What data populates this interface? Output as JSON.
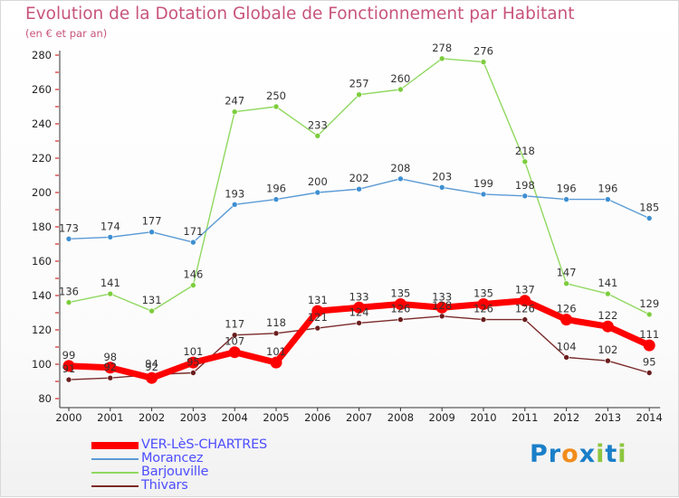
{
  "header": {
    "title": "Evolution de la Dotation Globale de Fonctionnement par Habitant",
    "subtitle": "(en € et par an)"
  },
  "logo": {
    "text": "Proxiti",
    "colors": [
      "#1a7fc8",
      "#1a7fc8",
      "#f28c1c",
      "#1a7fc8",
      "#8dc63f",
      "#1a7fc8",
      "#8dc63f"
    ]
  },
  "colors": {
    "title": "#c8547c",
    "legend_text": "#4d4dff",
    "axis": "#333333",
    "grid_tick": "#cc0000"
  },
  "chart_data": {
    "type": "line",
    "x": [
      "2000",
      "2001",
      "2002",
      "2003",
      "2004",
      "2005",
      "2006",
      "2007",
      "2008",
      "2009",
      "2010",
      "2011",
      "2012",
      "2013",
      "2014"
    ],
    "ylim": [
      80,
      280
    ],
    "yticks": [
      80,
      100,
      120,
      140,
      160,
      180,
      200,
      220,
      240,
      260,
      280
    ],
    "grid": false,
    "legend_position": "bottom-left",
    "series": [
      {
        "name": "VER-LèS-CHARTRES",
        "color": "#ff0000",
        "emphasis": true,
        "values": [
          99,
          98,
          92,
          101,
          107,
          101,
          131,
          133,
          135,
          133,
          135,
          137,
          126,
          122,
          111
        ]
      },
      {
        "name": "Morancez",
        "color": "#5b9bd5",
        "marker": "#3d8fd1",
        "values": [
          173,
          174,
          177,
          171,
          193,
          196,
          200,
          202,
          208,
          203,
          199,
          198,
          196,
          196,
          185
        ]
      },
      {
        "name": "Barjouville",
        "color": "#90d85f",
        "marker": "#7ccd3c",
        "values": [
          136,
          141,
          131,
          146,
          247,
          250,
          233,
          257,
          260,
          278,
          276,
          218,
          147,
          141,
          129
        ]
      },
      {
        "name": "Thivars",
        "color": "#7b2a2a",
        "marker": "#6b1d1d",
        "values": [
          91,
          92,
          94,
          95,
          117,
          118,
          121,
          124,
          126,
          128,
          126,
          126,
          104,
          102,
          95
        ]
      }
    ]
  }
}
